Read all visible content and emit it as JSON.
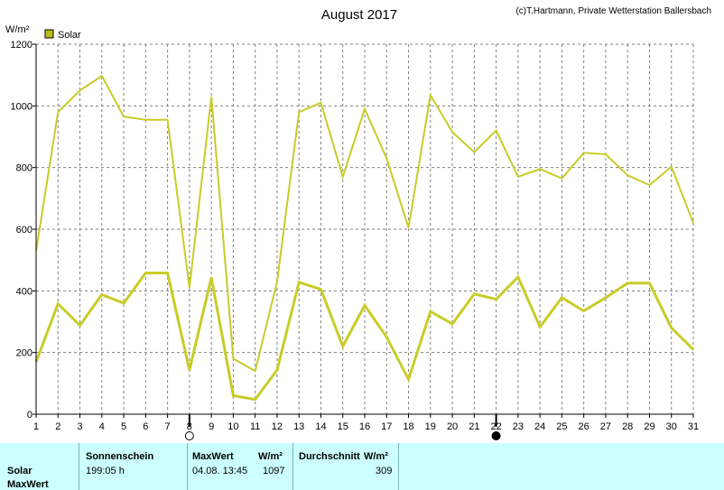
{
  "header": {
    "title": "August 2017",
    "credit": "(c)T.Hartmann, Private Wetterstation Ballersbach"
  },
  "colors": {
    "series": "#c8cc28",
    "legend_box": "#b8bc20",
    "panel_bg": "#ccffff"
  },
  "chart_data": {
    "type": "line",
    "title": "August 2017",
    "ylabel": "W/m²",
    "ylim": [
      0,
      1200
    ],
    "yticks": [
      0,
      200,
      400,
      600,
      800,
      1000,
      1200
    ],
    "xlim": [
      1,
      31
    ],
    "x": [
      1,
      2,
      3,
      4,
      5,
      6,
      7,
      8,
      9,
      10,
      11,
      12,
      13,
      14,
      15,
      16,
      17,
      18,
      19,
      20,
      21,
      22,
      23,
      24,
      25,
      26,
      27,
      28,
      29,
      30,
      31
    ],
    "grid": true,
    "legend": "top-left",
    "legend_entries": [
      "Solar"
    ],
    "series": [
      {
        "name": "Solar",
        "role": "max",
        "values": [
          530,
          980,
          1050,
          1097,
          965,
          955,
          955,
          410,
          1030,
          180,
          140,
          430,
          980,
          1010,
          770,
          990,
          830,
          605,
          1035,
          915,
          850,
          920,
          770,
          795,
          765,
          848,
          843,
          775,
          743,
          803,
          620
        ]
      },
      {
        "name": "Solar",
        "role": "average",
        "values": [
          170,
          358,
          288,
          388,
          360,
          458,
          458,
          143,
          443,
          60,
          48,
          143,
          428,
          405,
          220,
          353,
          250,
          113,
          333,
          293,
          390,
          373,
          445,
          283,
          378,
          335,
          378,
          425,
          425,
          280,
          210
        ]
      }
    ],
    "markers": [
      {
        "x": 8,
        "symbol": "open-circle"
      },
      {
        "x": 22,
        "symbol": "filled-circle"
      }
    ]
  },
  "panel": {
    "row_labels": [
      "Solar",
      "MaxWert"
    ],
    "sunshine": {
      "label": "Sonnenschein",
      "value": "199:05 h"
    },
    "max": {
      "label": "MaxWert",
      "unit": "W/m²",
      "datetime": "04.08.  13:45",
      "value": "1097"
    },
    "avg": {
      "label": "Durchschnitt",
      "unit": "W/m²",
      "value": "309"
    }
  }
}
